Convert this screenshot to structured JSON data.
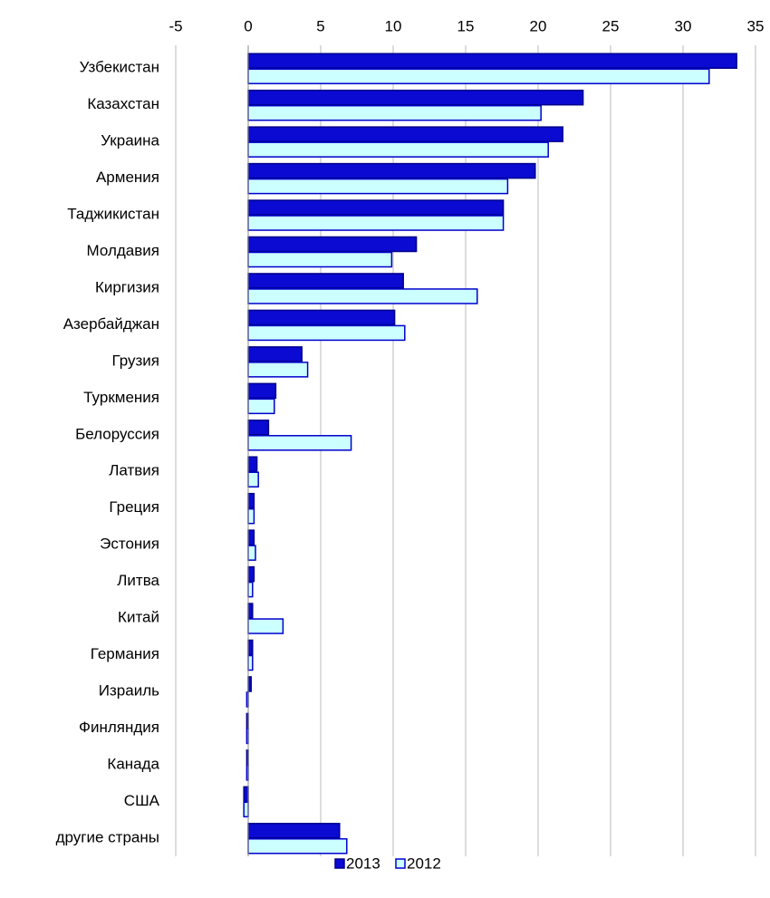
{
  "chart_data": {
    "type": "hbar",
    "categories": [
      "Узбекистан",
      "Казахстан",
      "Украина",
      "Армения",
      "Таджикистан",
      "Молдавия",
      "Киргизия",
      "Азербайджан",
      "Грузия",
      "Туркмения",
      "Белоруссия",
      "Латвия",
      "Греция",
      "Эстония",
      "Литва",
      "Китай",
      "Германия",
      "Израиль",
      "Финляндия",
      "Канада",
      "США",
      "другие страны"
    ],
    "series": [
      {
        "name": "2013",
        "color": "#0a0ad2",
        "values": [
          33.7,
          23.1,
          21.7,
          19.8,
          17.6,
          11.6,
          10.7,
          10.1,
          3.7,
          1.9,
          1.4,
          0.6,
          0.4,
          0.4,
          0.4,
          0.3,
          0.3,
          0.2,
          -0.1,
          -0.1,
          -0.3,
          6.3
        ]
      },
      {
        "name": "2012",
        "color": "#ccffff",
        "values": [
          31.8,
          20.2,
          20.7,
          17.9,
          17.6,
          9.9,
          15.8,
          10.8,
          4.1,
          1.8,
          7.1,
          0.7,
          0.4,
          0.5,
          0.3,
          2.4,
          0.3,
          -0.1,
          -0.1,
          -0.1,
          -0.3,
          6.8
        ]
      }
    ],
    "xlim": [
      -5,
      35
    ],
    "xticks": [
      -5,
      0,
      5,
      10,
      15,
      20,
      25,
      30,
      35
    ],
    "grid": true,
    "legend": "bottom"
  }
}
